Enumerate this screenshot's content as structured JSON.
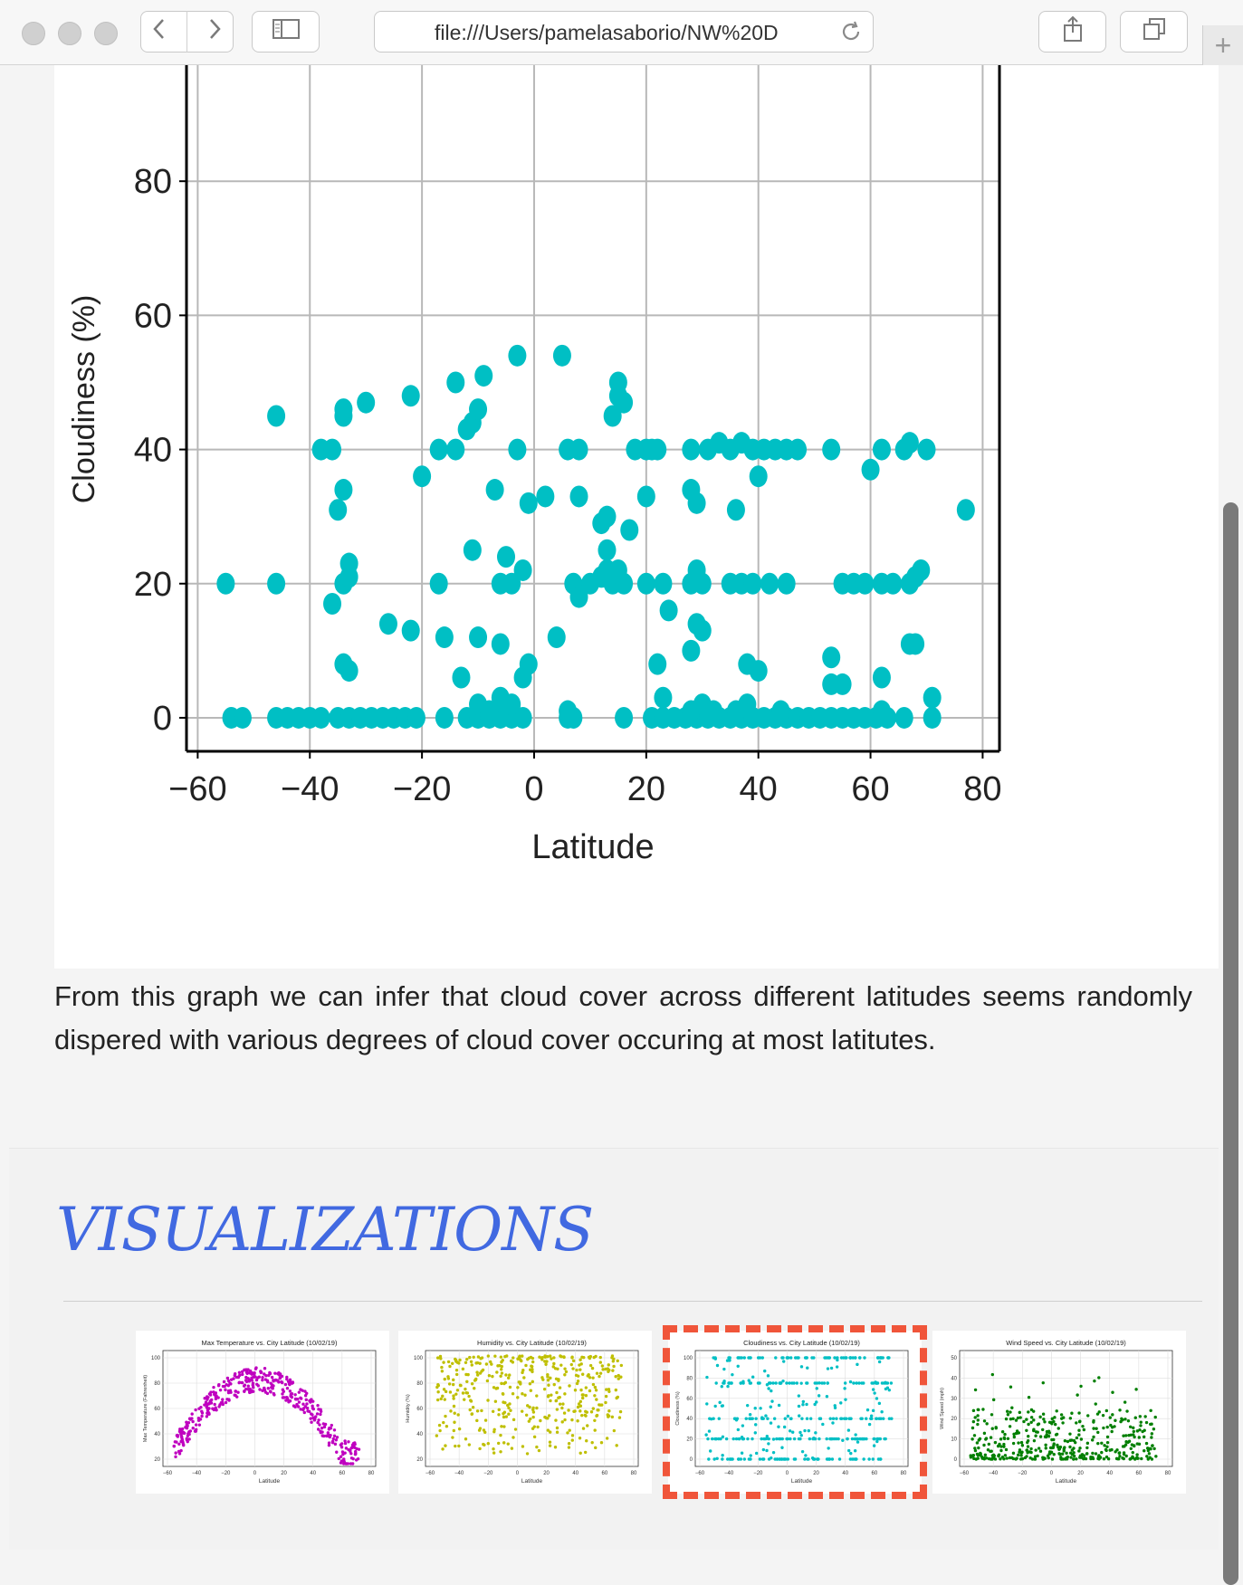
{
  "browser": {
    "url": "file:///Users/pamelasaborio/NW%20D",
    "icons": {
      "back": "chevron-left-icon",
      "forward": "chevron-right-icon",
      "sidebar": "sidebar-icon",
      "reload": "reload-icon",
      "share": "share-icon",
      "tabs": "tabs-icon",
      "new_tab": "plus-icon"
    }
  },
  "main_chart": {
    "chart_data": {
      "type": "scatter",
      "xlabel": "Latitude",
      "ylabel": "Cloudiness (%)",
      "xlim": [
        -62,
        83
      ],
      "ylim": [
        -5,
        100
      ],
      "x_ticks": [
        -60,
        -40,
        -20,
        0,
        20,
        40,
        60,
        80
      ],
      "y_ticks": [
        0,
        20,
        40,
        60,
        80
      ],
      "grid": true,
      "color": "#00bfc4",
      "points": [
        [
          -54,
          0
        ],
        [
          -52,
          0
        ],
        [
          -46,
          0
        ],
        [
          -44,
          0
        ],
        [
          -42,
          0
        ],
        [
          -40,
          0
        ],
        [
          -38,
          0
        ],
        [
          -35,
          0
        ],
        [
          -33,
          0
        ],
        [
          -31,
          0
        ],
        [
          -29,
          0
        ],
        [
          -27,
          0
        ],
        [
          -25,
          0
        ],
        [
          -23,
          0
        ],
        [
          -21,
          0
        ],
        [
          -16,
          0
        ],
        [
          -12,
          0
        ],
        [
          -10,
          0
        ],
        [
          -8,
          0
        ],
        [
          -6,
          0
        ],
        [
          -4,
          0
        ],
        [
          -2,
          0
        ],
        [
          6,
          0
        ],
        [
          7,
          0
        ],
        [
          16,
          0
        ],
        [
          21,
          0
        ],
        [
          23,
          0
        ],
        [
          25,
          0
        ],
        [
          27,
          0
        ],
        [
          29,
          0
        ],
        [
          31,
          0
        ],
        [
          33,
          0
        ],
        [
          35,
          0
        ],
        [
          37,
          0
        ],
        [
          39,
          0
        ],
        [
          41,
          0
        ],
        [
          43,
          0
        ],
        [
          45,
          0
        ],
        [
          47,
          0
        ],
        [
          49,
          0
        ],
        [
          51,
          0
        ],
        [
          53,
          0
        ],
        [
          55,
          0
        ],
        [
          57,
          0
        ],
        [
          59,
          0
        ],
        [
          61,
          0
        ],
        [
          63,
          0
        ],
        [
          66,
          0
        ],
        [
          71,
          0
        ],
        [
          -10,
          2
        ],
        [
          -8,
          1
        ],
        [
          -6,
          3
        ],
        [
          -4,
          2
        ],
        [
          -2,
          6
        ],
        [
          -1,
          8
        ],
        [
          6,
          1
        ],
        [
          23,
          3
        ],
        [
          28,
          1
        ],
        [
          30,
          2
        ],
        [
          32,
          1
        ],
        [
          36,
          1
        ],
        [
          38,
          2
        ],
        [
          44,
          1
        ],
        [
          62,
          1
        ],
        [
          71,
          3
        ],
        [
          -55,
          20
        ],
        [
          -46,
          20
        ],
        [
          -36,
          17
        ],
        [
          -34,
          20
        ],
        [
          -33,
          21
        ],
        [
          -33,
          23
        ],
        [
          -17,
          20
        ],
        [
          -11,
          25
        ],
        [
          -6,
          20
        ],
        [
          -5,
          24
        ],
        [
          -4,
          20
        ],
        [
          -2,
          22
        ],
        [
          7,
          20
        ],
        [
          8,
          18
        ],
        [
          10,
          20
        ],
        [
          12,
          21
        ],
        [
          13,
          22
        ],
        [
          13,
          25
        ],
        [
          14,
          20
        ],
        [
          15,
          22
        ],
        [
          16,
          20
        ],
        [
          20,
          20
        ],
        [
          23,
          20
        ],
        [
          24,
          16
        ],
        [
          28,
          20
        ],
        [
          29,
          22
        ],
        [
          30,
          20
        ],
        [
          35,
          20
        ],
        [
          37,
          20
        ],
        [
          39,
          20
        ],
        [
          42,
          20
        ],
        [
          45,
          20
        ],
        [
          55,
          20
        ],
        [
          57,
          20
        ],
        [
          59,
          20
        ],
        [
          62,
          20
        ],
        [
          64,
          20
        ],
        [
          67,
          20
        ],
        [
          68,
          21
        ],
        [
          69,
          22
        ],
        [
          -34,
          8
        ],
        [
          -33,
          7
        ],
        [
          -26,
          14
        ],
        [
          -22,
          13
        ],
        [
          -16,
          12
        ],
        [
          -13,
          6
        ],
        [
          -10,
          12
        ],
        [
          -6,
          11
        ],
        [
          4,
          12
        ],
        [
          28,
          10
        ],
        [
          29,
          14
        ],
        [
          30,
          13
        ],
        [
          22,
          8
        ],
        [
          38,
          8
        ],
        [
          40,
          7
        ],
        [
          53,
          9
        ],
        [
          53,
          5
        ],
        [
          55,
          5
        ],
        [
          62,
          6
        ],
        [
          67,
          11
        ],
        [
          68,
          11
        ],
        [
          -46,
          45
        ],
        [
          -38,
          40
        ],
        [
          -36,
          40
        ],
        [
          -34,
          45
        ],
        [
          -34,
          46
        ],
        [
          -30,
          47
        ],
        [
          -22,
          48
        ],
        [
          -20,
          36
        ],
        [
          -17,
          40
        ],
        [
          -14,
          40
        ],
        [
          -12,
          43
        ],
        [
          -11,
          44
        ],
        [
          -10,
          46
        ],
        [
          -9,
          51
        ],
        [
          -14,
          50
        ],
        [
          -7,
          34
        ],
        [
          -3,
          54
        ],
        [
          -3,
          40
        ],
        [
          -1,
          32
        ],
        [
          2,
          33
        ],
        [
          5,
          54
        ],
        [
          6,
          40
        ],
        [
          8,
          40
        ],
        [
          8,
          33
        ],
        [
          12,
          29
        ],
        [
          13,
          30
        ],
        [
          17,
          28
        ],
        [
          14,
          45
        ],
        [
          15,
          48
        ],
        [
          16,
          47
        ],
        [
          15,
          50
        ],
        [
          18,
          40
        ],
        [
          20,
          40
        ],
        [
          21,
          40
        ],
        [
          22,
          40
        ],
        [
          20,
          33
        ],
        [
          28,
          40
        ],
        [
          28,
          34
        ],
        [
          29,
          32
        ],
        [
          31,
          40
        ],
        [
          33,
          41
        ],
        [
          35,
          40
        ],
        [
          37,
          41
        ],
        [
          39,
          40
        ],
        [
          41,
          40
        ],
        [
          40,
          36
        ],
        [
          43,
          40
        ],
        [
          45,
          40
        ],
        [
          47,
          40
        ],
        [
          53,
          40
        ],
        [
          60,
          37
        ],
        [
          62,
          40
        ],
        [
          66,
          40
        ],
        [
          67,
          41
        ],
        [
          70,
          40
        ],
        [
          77,
          31
        ],
        [
          -34,
          34
        ],
        [
          -35,
          31
        ],
        [
          36,
          31
        ]
      ]
    }
  },
  "inference_text": "From this graph we can infer that cloud cover across different latitudes seems randomly dispered with various degrees of cloud cover occuring at most latitutes.",
  "visualizations": {
    "heading": "VISUALIZATIONS",
    "thumbnails": [
      {
        "title": "Max Temperature vs. City Latitude (10/02/19)",
        "ylabel": "Max Temperature (Fahrenheit)",
        "xlabel": "Latitude",
        "color": "#bf00bf",
        "y_ticks": [
          "100",
          "80",
          "60",
          "40",
          "20"
        ],
        "x_ticks": [
          "-60",
          "-40",
          "-20",
          "0",
          "20",
          "40",
          "60",
          "80"
        ]
      },
      {
        "title": "Humidity vs. City Latitude (10/02/19)",
        "ylabel": "Humidity (%)",
        "xlabel": "Latitude",
        "color": "#bfbf00",
        "y_ticks": [
          "100",
          "80",
          "60",
          "40",
          "20"
        ],
        "x_ticks": [
          "-60",
          "-40",
          "-20",
          "0",
          "20",
          "40",
          "60",
          "80"
        ]
      },
      {
        "title": "Cloudiness vs. City Latitude (10/02/19)",
        "ylabel": "Cloudiness (%)",
        "xlabel": "Latitude",
        "color": "#00bfc4",
        "y_ticks": [
          "100",
          "80",
          "60",
          "40",
          "20",
          "0"
        ],
        "x_ticks": [
          "-60",
          "-40",
          "-20",
          "0",
          "20",
          "40",
          "60",
          "80"
        ],
        "selected": true
      },
      {
        "title": "Wind Speed vs. City Latitude (10/02/19)",
        "ylabel": "Wind Speed (mph)",
        "xlabel": "Latitude",
        "color": "#007f00",
        "y_ticks": [
          "50",
          "40",
          "30",
          "20",
          "10",
          "0"
        ],
        "x_ticks": [
          "-60",
          "-40",
          "-20",
          "0",
          "20",
          "40",
          "60",
          "80"
        ]
      }
    ]
  }
}
